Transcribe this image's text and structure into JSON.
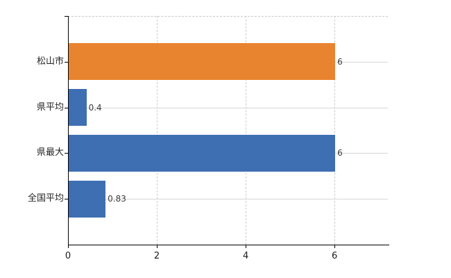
{
  "chart_data": {
    "type": "bar",
    "orientation": "horizontal",
    "title": "",
    "xlabel": "",
    "ylabel": "",
    "categories": [
      "松山市",
      "県平均",
      "県最大",
      "全国平均"
    ],
    "values": [
      6,
      0.4,
      6,
      0.83
    ],
    "value_labels": [
      "6",
      "0.4",
      "6",
      "0.83"
    ],
    "series": [
      {
        "name": "",
        "values": [
          6,
          0.4,
          6,
          0.83
        ],
        "bar_colors": [
          "#e8842f",
          "#3e6fb3",
          "#3e6fb3",
          "#3e6fb3"
        ]
      }
    ],
    "x_ticks": [
      "0",
      "2",
      "4",
      "6"
    ],
    "x_tick_values": [
      0,
      2,
      4,
      6
    ],
    "xlim": [
      0,
      7.2
    ],
    "grid": "on",
    "legend": "none",
    "accent_orange": "#e8842f",
    "accent_blue": "#3e6fb3",
    "grid_color": "#d6d6d6",
    "axis_color": "#000000"
  }
}
